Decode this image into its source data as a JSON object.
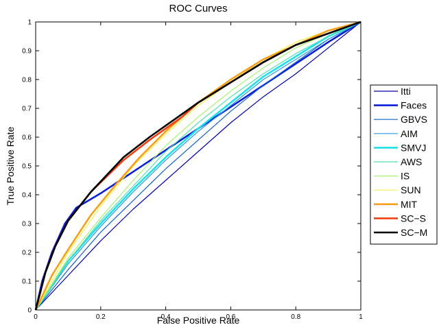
{
  "chart_data": {
    "type": "line",
    "title": "ROC Curves",
    "xlabel": "False Positive Rate",
    "ylabel": "True Positive Rate",
    "xlim": [
      0,
      1
    ],
    "ylim": [
      0,
      1
    ],
    "x_ticks": [
      "0",
      "0.2",
      "0.4",
      "0.6",
      "0.8",
      "1"
    ],
    "y_ticks": [
      "0",
      "0.1",
      "0.2",
      "0.3",
      "0.4",
      "0.5",
      "0.6",
      "0.7",
      "0.8",
      "0.9",
      "1"
    ],
    "grid": false,
    "legend_position": "outside-right",
    "series": [
      {
        "name": "Itti",
        "color": "#0000a8",
        "width": "thin",
        "x": [
          0,
          0.1,
          0.2,
          0.3,
          0.4,
          0.5,
          0.6,
          0.7,
          0.8,
          0.9,
          1
        ],
        "y": [
          0,
          0.12,
          0.24,
          0.35,
          0.45,
          0.55,
          0.65,
          0.74,
          0.82,
          0.91,
          1
        ]
      },
      {
        "name": "Faces",
        "color": "#0a1ed8",
        "width": "thick",
        "x": [
          0,
          0.02,
          0.05,
          0.09,
          0.125,
          0.2,
          0.3,
          0.4,
          0.5,
          0.6,
          0.7,
          0.8,
          0.9,
          1
        ],
        "y": [
          0,
          0.1,
          0.2,
          0.3,
          0.355,
          0.405,
          0.48,
          0.555,
          0.63,
          0.705,
          0.78,
          0.855,
          0.93,
          1
        ]
      },
      {
        "name": "GBVS",
        "color": "#1060c0",
        "width": "thin",
        "x": [
          0,
          0.1,
          0.2,
          0.3,
          0.4,
          0.5,
          0.6,
          0.7,
          0.8,
          0.9,
          1
        ],
        "y": [
          0,
          0.14,
          0.27,
          0.38,
          0.49,
          0.59,
          0.69,
          0.78,
          0.86,
          0.94,
          1
        ]
      },
      {
        "name": "AIM",
        "color": "#2a9ae0",
        "width": "thin",
        "x": [
          0,
          0.1,
          0.2,
          0.3,
          0.4,
          0.5,
          0.6,
          0.7,
          0.8,
          0.9,
          1
        ],
        "y": [
          0,
          0.16,
          0.29,
          0.41,
          0.52,
          0.62,
          0.71,
          0.8,
          0.87,
          0.94,
          1
        ]
      },
      {
        "name": "SMVJ",
        "color": "#1ee0e8",
        "width": "thick",
        "x": [
          0,
          0.1,
          0.2,
          0.3,
          0.4,
          0.5,
          0.6,
          0.7,
          0.8,
          0.9,
          1
        ],
        "y": [
          0,
          0.17,
          0.3,
          0.42,
          0.53,
          0.63,
          0.72,
          0.81,
          0.88,
          0.95,
          1
        ]
      },
      {
        "name": "AWS",
        "color": "#50e0b0",
        "width": "thin",
        "x": [
          0,
          0.1,
          0.2,
          0.3,
          0.4,
          0.5,
          0.6,
          0.7,
          0.8,
          0.9,
          1
        ],
        "y": [
          0,
          0.17,
          0.31,
          0.43,
          0.55,
          0.65,
          0.74,
          0.82,
          0.89,
          0.95,
          1
        ]
      },
      {
        "name": "IS",
        "color": "#a8f070",
        "width": "thin",
        "x": [
          0,
          0.1,
          0.2,
          0.3,
          0.4,
          0.5,
          0.6,
          0.7,
          0.8,
          0.9,
          1
        ],
        "y": [
          0,
          0.18,
          0.32,
          0.45,
          0.57,
          0.67,
          0.76,
          0.84,
          0.91,
          0.96,
          1
        ]
      },
      {
        "name": "SUN",
        "color": "#f0f048",
        "width": "thin",
        "x": [
          0,
          0.1,
          0.2,
          0.3,
          0.4,
          0.5,
          0.6,
          0.7,
          0.8,
          0.9,
          1
        ],
        "y": [
          0,
          0.2,
          0.36,
          0.5,
          0.61,
          0.71,
          0.79,
          0.87,
          0.93,
          0.97,
          1
        ]
      },
      {
        "name": "MIT",
        "color": "#f5a018",
        "width": "thick",
        "x": [
          0,
          0.05,
          0.1,
          0.17,
          0.25,
          0.32,
          0.4,
          0.5,
          0.6,
          0.7,
          0.8,
          0.9,
          1
        ],
        "y": [
          0,
          0.12,
          0.21,
          0.33,
          0.44,
          0.53,
          0.62,
          0.72,
          0.8,
          0.87,
          0.92,
          0.97,
          1
        ]
      },
      {
        "name": "SC−S",
        "color": "#f04010",
        "width": "thick",
        "x": [
          0,
          0.03,
          0.06,
          0.1,
          0.17,
          0.27,
          0.35,
          0.45,
          0.5,
          0.6,
          0.7,
          0.8,
          0.9,
          1
        ],
        "y": [
          0,
          0.13,
          0.22,
          0.31,
          0.41,
          0.52,
          0.59,
          0.67,
          0.72,
          0.79,
          0.86,
          0.92,
          0.96,
          1
        ]
      },
      {
        "name": "SC−M",
        "color": "#000000",
        "width": "thick",
        "x": [
          0,
          0.03,
          0.06,
          0.1,
          0.17,
          0.27,
          0.35,
          0.45,
          0.5,
          0.6,
          0.7,
          0.8,
          0.9,
          1
        ],
        "y": [
          0,
          0.13,
          0.22,
          0.31,
          0.41,
          0.53,
          0.6,
          0.68,
          0.72,
          0.79,
          0.86,
          0.92,
          0.96,
          1
        ]
      }
    ]
  }
}
